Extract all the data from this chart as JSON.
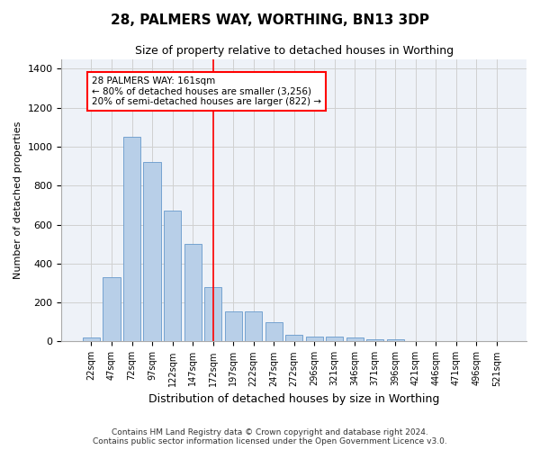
{
  "title1": "28, PALMERS WAY, WORTHING, BN13 3DP",
  "title2": "Size of property relative to detached houses in Worthing",
  "xlabel": "Distribution of detached houses by size in Worthing",
  "ylabel": "Number of detached properties",
  "categories": [
    "22sqm",
    "47sqm",
    "72sqm",
    "97sqm",
    "122sqm",
    "147sqm",
    "172sqm",
    "197sqm",
    "222sqm",
    "247sqm",
    "272sqm",
    "296sqm",
    "321sqm",
    "346sqm",
    "371sqm",
    "396sqm",
    "421sqm",
    "446sqm",
    "471sqm",
    "496sqm",
    "521sqm"
  ],
  "values": [
    20,
    330,
    1050,
    920,
    670,
    500,
    280,
    155,
    155,
    100,
    35,
    25,
    25,
    20,
    10,
    10,
    0,
    0,
    0,
    0,
    0
  ],
  "bar_color": "#b8cfe8",
  "bar_edge_color": "#6699cc",
  "background_color": "#eef2f8",
  "grid_color": "#d0d0d0",
  "red_line_x": 6.0,
  "ylim": [
    0,
    1450
  ],
  "annotation_text": "28 PALMERS WAY: 161sqm\n← 80% of detached houses are smaller (3,256)\n20% of semi-detached houses are larger (822) →",
  "footer": "Contains HM Land Registry data © Crown copyright and database right 2024.\nContains public sector information licensed under the Open Government Licence v3.0."
}
